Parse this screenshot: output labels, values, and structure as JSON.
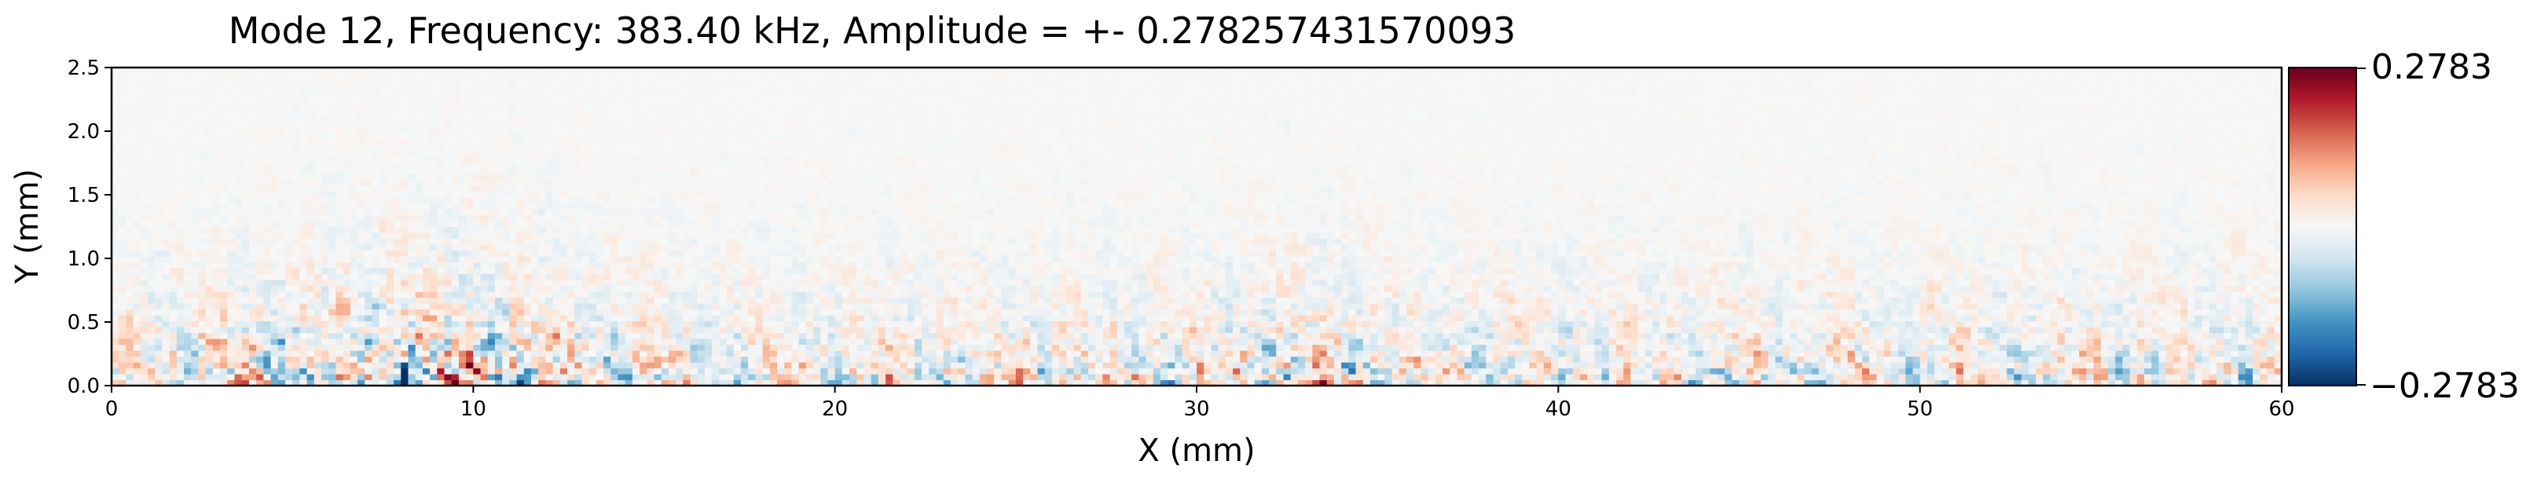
{
  "chart_data": {
    "type": "heatmap",
    "title": "Mode 12, Frequency: 383.40 kHz, Amplitude = +- 0.278257431570093",
    "xlabel": "X (mm)",
    "ylabel": "Y (mm)",
    "xlim": [
      0,
      60
    ],
    "ylim": [
      0,
      2.5
    ],
    "xticks": [
      0,
      10,
      20,
      30,
      40,
      50,
      60
    ],
    "xtick_labels": [
      "0",
      "10",
      "20",
      "30",
      "40",
      "50",
      "60"
    ],
    "yticks": [
      0.0,
      0.5,
      1.0,
      1.5,
      2.0,
      2.5
    ],
    "ytick_labels": [
      "0.0",
      "0.5",
      "1.0",
      "1.5",
      "2.0",
      "2.5"
    ],
    "colormap": "RdBu_r",
    "colors": {
      "low": "#053061",
      "mid": "#f7f7f7",
      "high": "#67001f"
    },
    "colorbar": {
      "min": -0.2783,
      "max": 0.2783,
      "max_label": "0.2783",
      "min_label": "−0.2783"
    },
    "grid": false
  }
}
